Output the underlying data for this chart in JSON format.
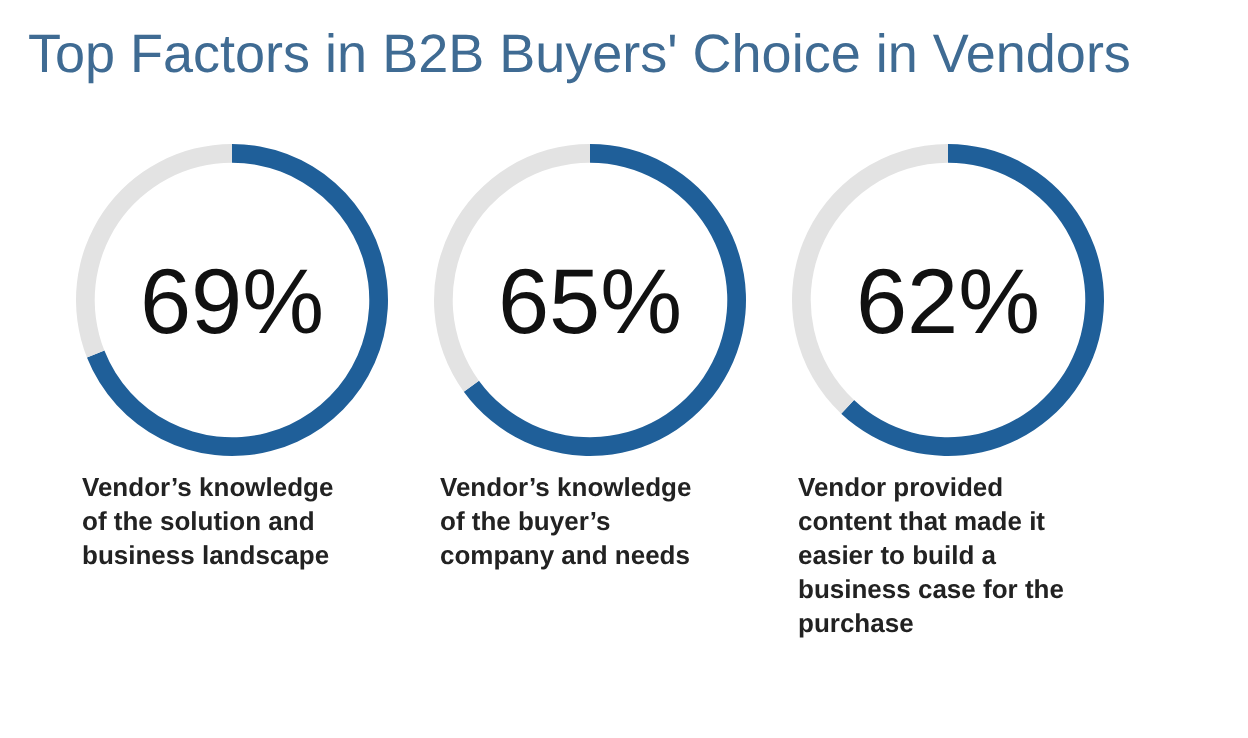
{
  "chart_data": [
    {
      "type": "donut",
      "title": "Top Factors in B2B Buyers' Choice in Vendors",
      "categories": [
        null,
        null
      ],
      "values": [
        69,
        31
      ],
      "colors": [
        "#1f5f99",
        "#e3e3e3"
      ],
      "value_labels": [
        "69%",
        null
      ],
      "xlabel": "Vendor’s knowledge\nof the solution and\nbusiness landscape"
    },
    {
      "type": "donut",
      "categories": [
        null,
        null
      ],
      "values": [
        65,
        35
      ],
      "colors": [
        "#1f5f99",
        "#e3e3e3"
      ],
      "value_labels": [
        "65%",
        null
      ],
      "xlabel": "Vendor’s knowledge\nof the buyer’s\ncompany and needs"
    },
    {
      "type": "donut",
      "categories": [
        null,
        null
      ],
      "values": [
        62,
        38
      ],
      "colors": [
        "#1f5f99",
        "#e3e3e3"
      ],
      "value_labels": [
        "62%",
        null
      ],
      "xlabel": "Vendor provided\ncontent that made it\neasier to build a\nbusiness case for the\npurchase"
    }
  ]
}
